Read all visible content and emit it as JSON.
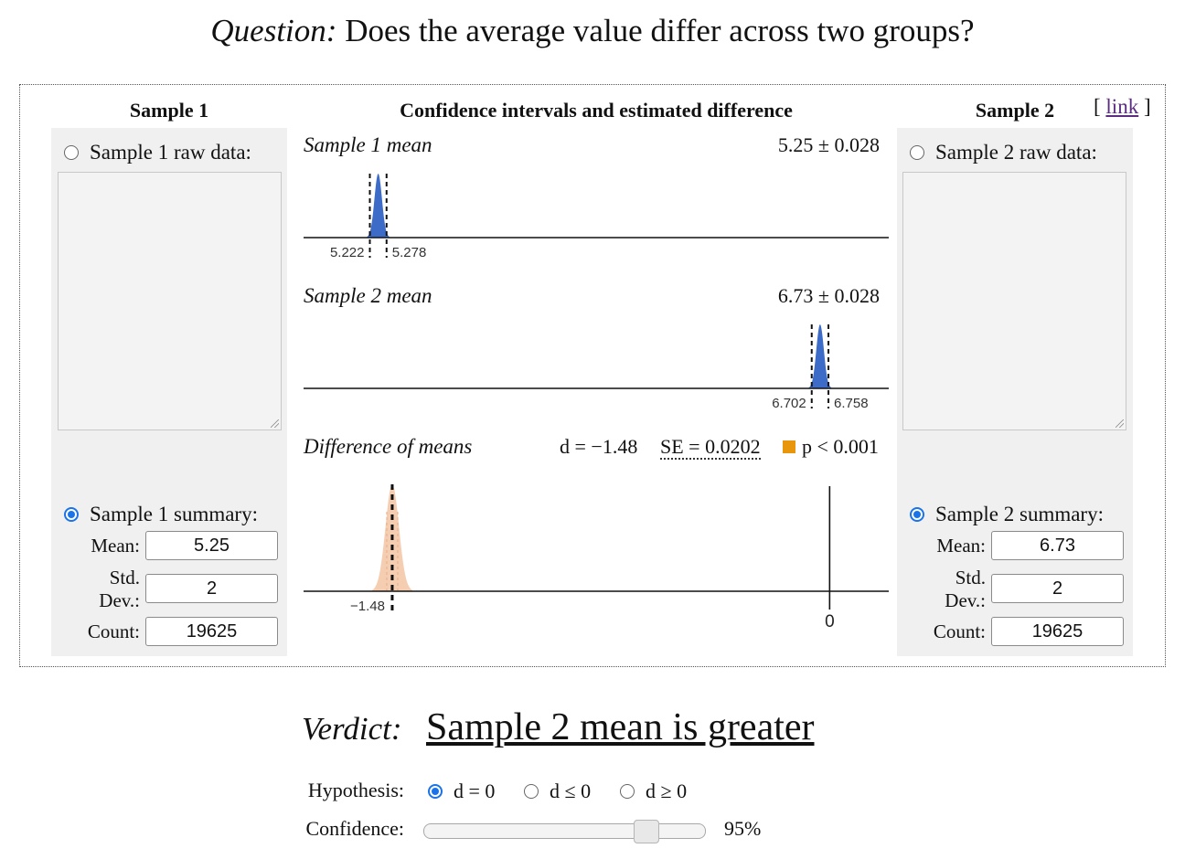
{
  "question": {
    "label": "Question:",
    "text": "Does the average value differ across two groups?"
  },
  "sample1": {
    "header": "Sample 1",
    "raw_label": "Sample 1 raw data:",
    "raw_value": "",
    "summary_label": "Sample 1 summary:",
    "mean_label": "Mean:",
    "mean": "5.25",
    "std_label_line1": "Std.",
    "std_label_line2": "Dev.:",
    "std": "2",
    "count_label": "Count:",
    "count": "19625",
    "mode": "summary"
  },
  "sample2": {
    "header": "Sample 2",
    "raw_label": "Sample 2 raw data:",
    "raw_value": "",
    "summary_label": "Sample 2 summary:",
    "mean_label": "Mean:",
    "mean": "6.73",
    "std_label_line1": "Std.",
    "std_label_line2": "Dev.:",
    "std": "2",
    "count_label": "Count:",
    "count": "19625",
    "mode": "summary"
  },
  "center": {
    "header": "Confidence intervals and estimated difference",
    "link_open": "[",
    "link_text": "link",
    "link_close": "]"
  },
  "chart_data": [
    {
      "type": "area",
      "title": "Sample 1 mean",
      "estimate_label": "5.25 ± 0.028",
      "mean": 5.25,
      "ci": [
        5.222,
        5.278
      ],
      "ci_labels": [
        "5.222",
        "5.278"
      ],
      "xlim": [
        5.0,
        6.96
      ],
      "color": "#3d6cc8"
    },
    {
      "type": "area",
      "title": "Sample 2 mean",
      "estimate_label": "6.73 ± 0.028",
      "mean": 6.73,
      "ci": [
        6.702,
        6.758
      ],
      "ci_labels": [
        "6.702",
        "6.758"
      ],
      "xlim": [
        5.0,
        6.96
      ],
      "color": "#3d6cc8"
    },
    {
      "type": "area",
      "title": "Difference of means",
      "d_label": "d = −1.48",
      "se_label": "SE = 0.0202",
      "p_label": "p < 0.001",
      "estimate": -1.48,
      "estimate_label": "−1.48",
      "zero_label": "0",
      "xlim": [
        -1.78,
        0.2
      ],
      "color": "#f5cdb0",
      "p_color": "#e8960c"
    }
  ],
  "verdict": {
    "label": "Verdict:",
    "text": "Sample 2 mean is greater"
  },
  "hypothesis": {
    "label": "Hypothesis:",
    "options": [
      "d = 0",
      "d ≤ 0",
      "d ≥ 0"
    ],
    "selected": "d = 0"
  },
  "confidence": {
    "label": "Confidence:",
    "value_label": "95%",
    "value": 0.95
  }
}
